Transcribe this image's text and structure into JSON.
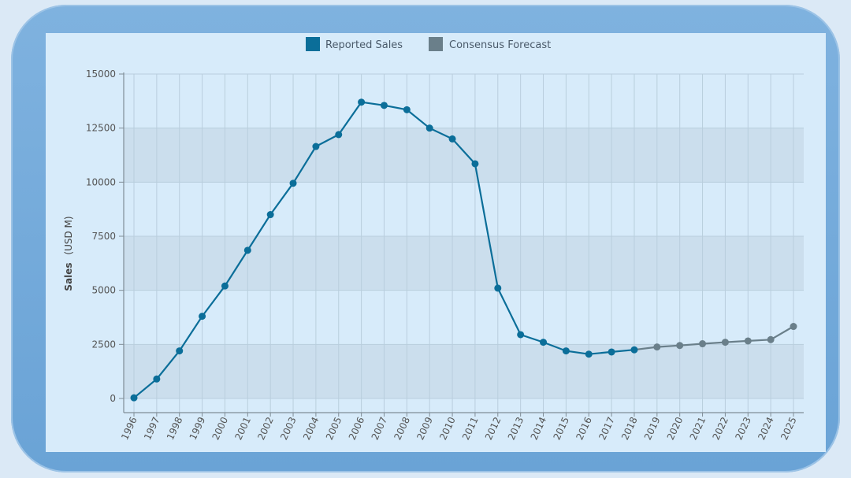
{
  "chart_data": {
    "type": "line",
    "x": [
      1996,
      1997,
      1998,
      1999,
      2000,
      2001,
      2002,
      2003,
      2004,
      2005,
      2006,
      2007,
      2008,
      2009,
      2010,
      2011,
      2012,
      2013,
      2014,
      2015,
      2016,
      2017,
      2018,
      2019,
      2020,
      2021,
      2022,
      2023,
      2024,
      2025
    ],
    "series": [
      {
        "name": "Reported Sales",
        "color": "#0b6e99",
        "x": [
          1996,
          1997,
          1998,
          1999,
          2000,
          2001,
          2002,
          2003,
          2004,
          2005,
          2006,
          2007,
          2008,
          2009,
          2010,
          2011,
          2012,
          2013,
          2014,
          2015,
          2016,
          2017,
          2018
        ],
        "values": [
          30,
          900,
          2200,
          3800,
          5200,
          6850,
          8500,
          9950,
          11650,
          12200,
          13700,
          13550,
          13350,
          12500,
          12000,
          10850,
          5100,
          2950,
          2600,
          2200,
          2050,
          2150,
          2250
        ]
      },
      {
        "name": "Consensus Forecast",
        "color": "#6a7f8a",
        "x": [
          2018,
          2019,
          2020,
          2021,
          2022,
          2023,
          2024,
          2025
        ],
        "values": [
          2250,
          2380,
          2450,
          2530,
          2600,
          2660,
          2720,
          3330
        ]
      }
    ],
    "ylabel_bold": "Sales",
    "ylabel_unit": "(USD M)",
    "ylim": [
      0,
      15000
    ],
    "yticks": [
      0,
      2500,
      5000,
      7500,
      10000,
      12500,
      15000
    ],
    "legend_position": "top-center",
    "grid": true
  }
}
